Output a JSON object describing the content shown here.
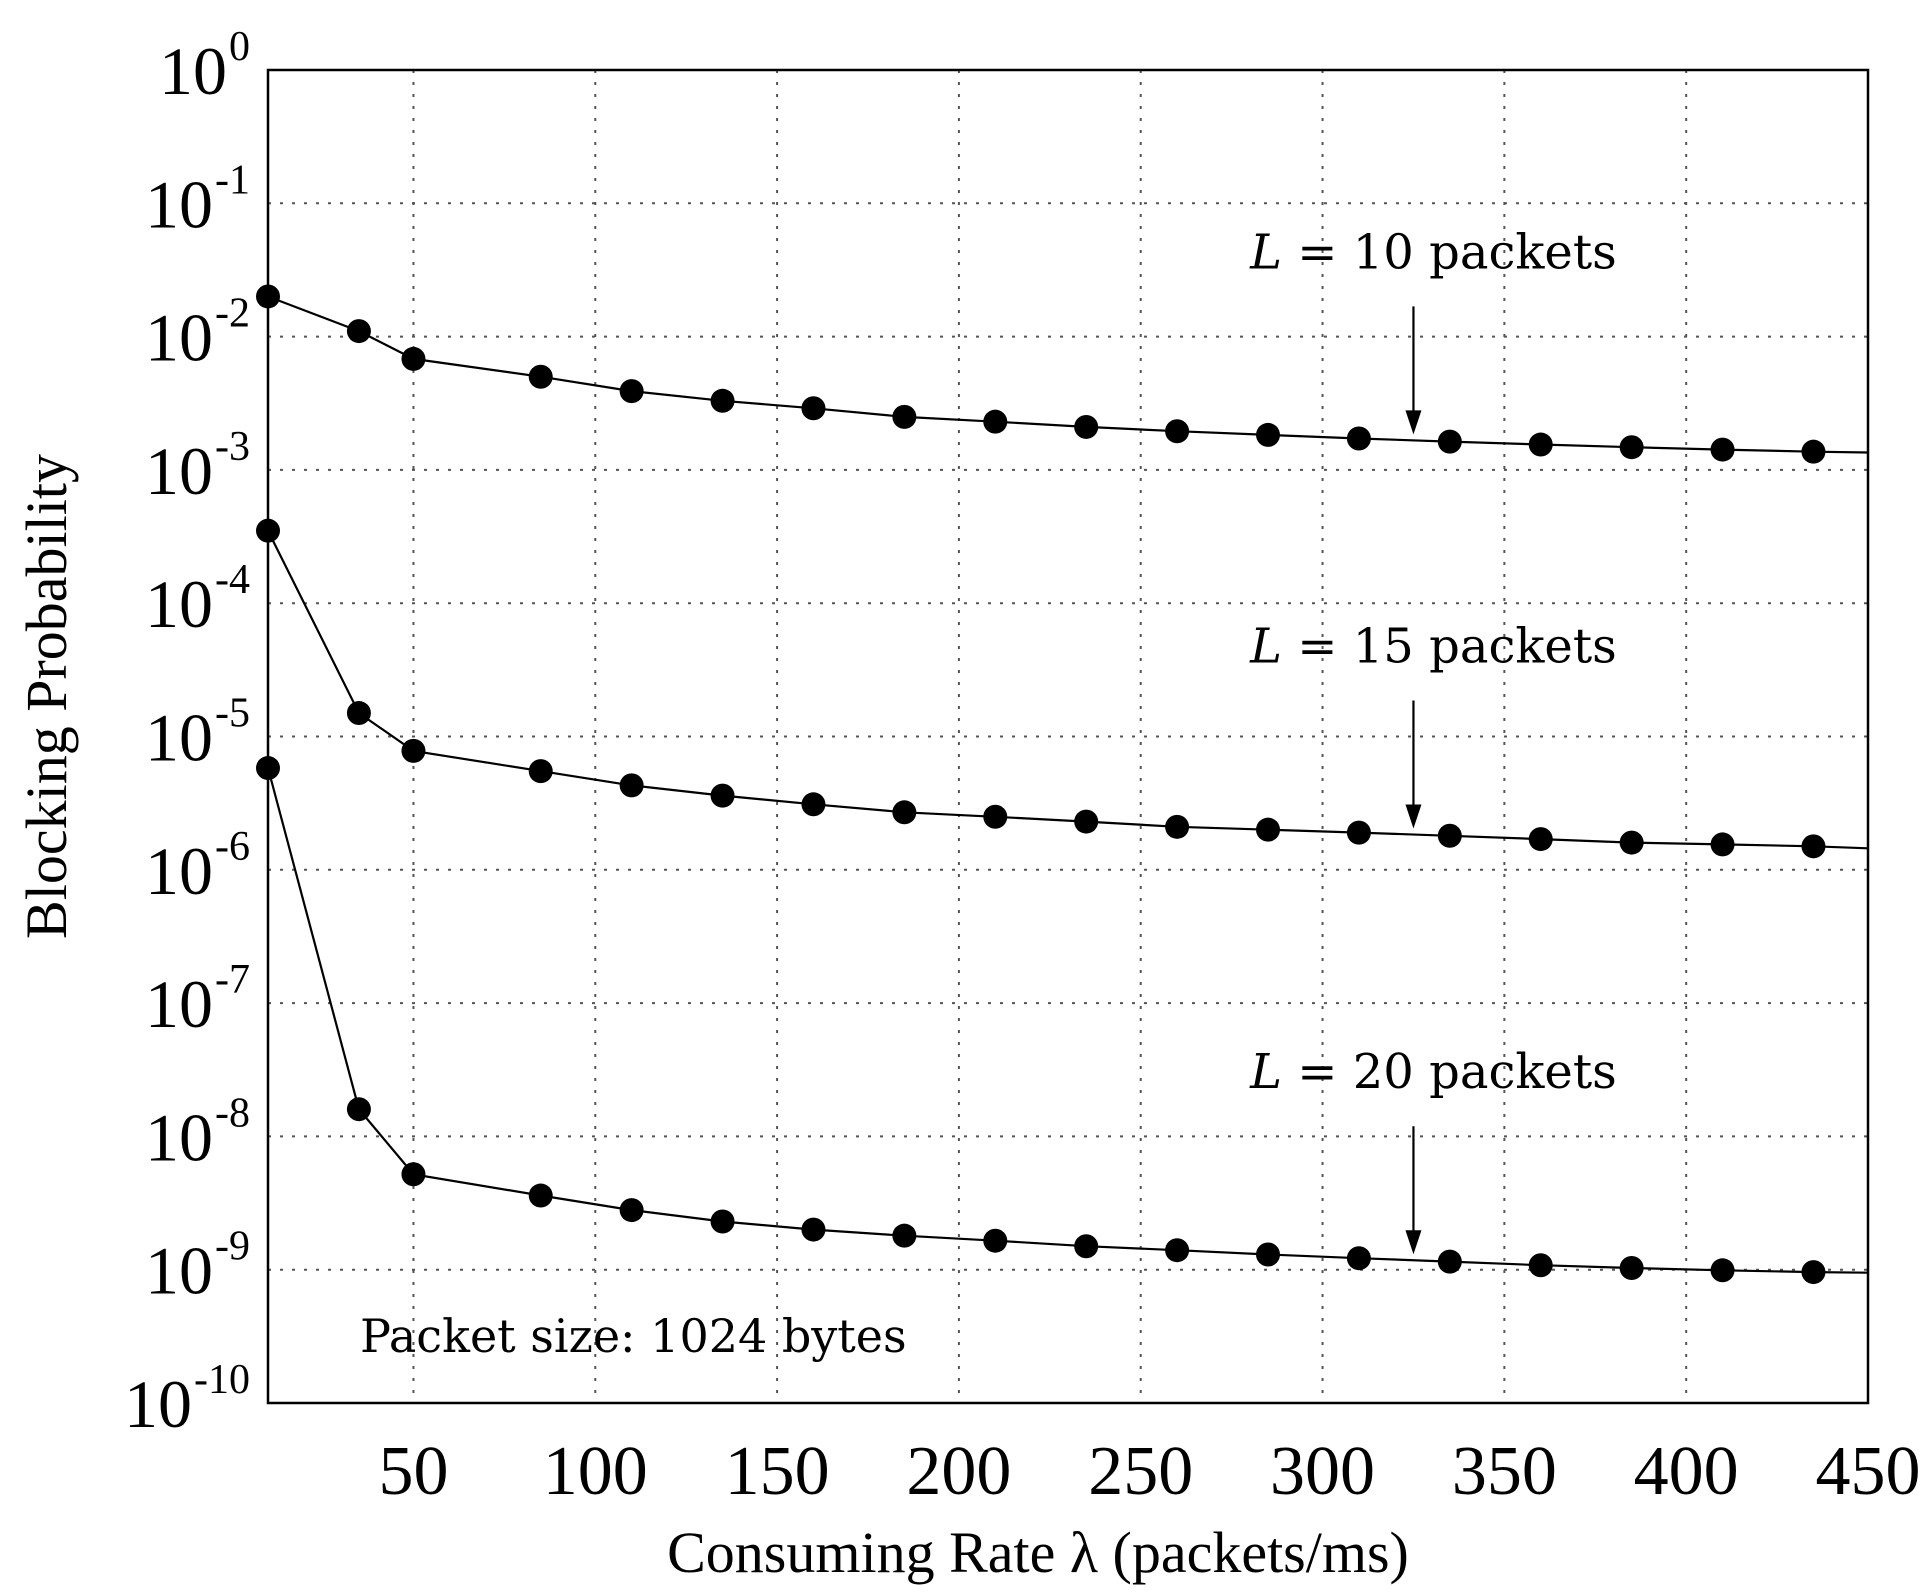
{
  "chart_data": {
    "type": "line",
    "title": "",
    "xlabel": "Consuming Rate λ (packets/ms)",
    "ylabel": "Blocking Probability",
    "yscale": "log",
    "xlim": [
      10,
      450
    ],
    "ylim": [
      1e-10,
      1
    ],
    "xticks": [
      50,
      100,
      150,
      200,
      250,
      300,
      350,
      400,
      450
    ],
    "yticks": [
      {
        "base": "10",
        "exp": "0",
        "value": 1
      },
      {
        "base": "10",
        "exp": "-1",
        "value": 0.1
      },
      {
        "base": "10",
        "exp": "-2",
        "value": 0.01
      },
      {
        "base": "10",
        "exp": "-3",
        "value": 0.001
      },
      {
        "base": "10",
        "exp": "-4",
        "value": 0.0001
      },
      {
        "base": "10",
        "exp": "-5",
        "value": 1e-05
      },
      {
        "base": "10",
        "exp": "-6",
        "value": 1e-06
      },
      {
        "base": "10",
        "exp": "-7",
        "value": 1e-07
      },
      {
        "base": "10",
        "exp": "-8",
        "value": 1e-08
      },
      {
        "base": "10",
        "exp": "-9",
        "value": 1e-09
      },
      {
        "base": "10",
        "exp": "-10",
        "value": 1e-10
      }
    ],
    "grid": true,
    "x": [
      10,
      35,
      50,
      85,
      110,
      135,
      160,
      185,
      210,
      235,
      260,
      285,
      310,
      335,
      360,
      385,
      410,
      435
    ],
    "series": [
      {
        "name": "L = 10 packets",
        "values": [
          0.02,
          0.011,
          0.0068,
          0.005,
          0.0039,
          0.0033,
          0.0029,
          0.0025,
          0.0023,
          0.0021,
          0.00195,
          0.00183,
          0.00172,
          0.00163,
          0.00155,
          0.00148,
          0.00142,
          0.00137
        ],
        "x_end": 450,
        "y_end": 0.00135
      },
      {
        "name": "L = 15 packets",
        "values": [
          0.00035,
          1.5e-05,
          7.8e-06,
          5.5e-06,
          4.3e-06,
          3.6e-06,
          3.1e-06,
          2.7e-06,
          2.5e-06,
          2.3e-06,
          2.1e-06,
          2e-06,
          1.9e-06,
          1.8e-06,
          1.7e-06,
          1.6e-06,
          1.55e-06,
          1.5e-06
        ],
        "x_end": 450,
        "y_end": 1.45e-06
      },
      {
        "name": "L = 20 packets",
        "values": [
          5.8e-06,
          1.6e-08,
          5.2e-09,
          3.6e-09,
          2.8e-09,
          2.3e-09,
          2e-09,
          1.8e-09,
          1.65e-09,
          1.5e-09,
          1.4e-09,
          1.3e-09,
          1.22e-09,
          1.15e-09,
          1.08e-09,
          1.03e-09,
          9.9e-10,
          9.6e-10
        ],
        "x_end": 450,
        "y_end": 9.5e-10
      }
    ],
    "annotations": [
      {
        "var": "L",
        "text": " = 10 packets",
        "series": 0,
        "arrow_x": 325
      },
      {
        "var": "L",
        "text": " = 15 packets",
        "series": 1,
        "arrow_x": 325
      },
      {
        "var": "L",
        "text": " = 20 packets",
        "series": 2,
        "arrow_x": 325
      }
    ],
    "note": "Packet size: 1024 bytes"
  }
}
